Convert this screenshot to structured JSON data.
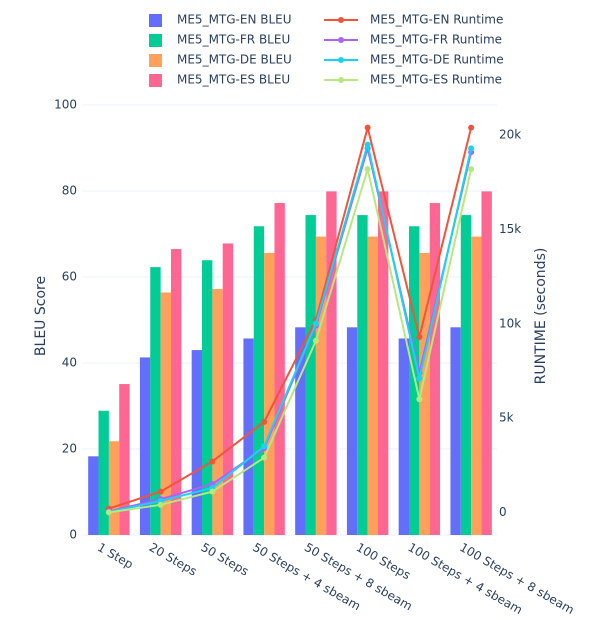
{
  "chart_data": {
    "type": "bar",
    "categories": [
      "1 Step",
      "20 Steps",
      "50 Steps",
      "50 Steps + 4 sbeam",
      "50 Steps + 8 sbeam",
      "100 Steps",
      "100 Steps + 4 sbeam",
      "100 Steps + 8 sbeam"
    ],
    "ylabel": "BLEU Score",
    "y2label": "RUNTIME (seconds)",
    "ylim": [
      0,
      100
    ],
    "y2lim": [
      -1200,
      21600
    ],
    "yticks": [
      0,
      20,
      40,
      60,
      80,
      100
    ],
    "y2ticks": [
      0,
      5000,
      10000,
      15000,
      20000
    ],
    "y2ticklabels": [
      "0",
      "5k",
      "10k",
      "15k",
      "20k"
    ],
    "legend_position": "top-center",
    "bar_series": [
      {
        "name": "ME5_MTG-EN BLEU",
        "color": "#636efa",
        "values": [
          18.3,
          41.3,
          43.0,
          45.7,
          48.3,
          48.3,
          45.7,
          48.3
        ]
      },
      {
        "name": "ME5_MTG-FR BLEU",
        "color": "#00cc96",
        "values": [
          28.9,
          62.3,
          63.9,
          71.8,
          74.4,
          74.4,
          71.8,
          74.4
        ]
      },
      {
        "name": "ME5_MTG-DE BLEU",
        "color": "#ffa15a",
        "values": [
          21.8,
          56.4,
          57.2,
          65.6,
          69.4,
          69.4,
          65.6,
          69.4
        ]
      },
      {
        "name": "ME5_MTG-ES BLEU",
        "color": "#ff6692",
        "values": [
          35.1,
          66.5,
          67.8,
          77.2,
          79.9,
          79.9,
          77.2,
          79.9
        ]
      }
    ],
    "line_series": [
      {
        "name": "ME5_MTG-EN Runtime",
        "color": "#ef553b",
        "values": [
          200,
          1100,
          2700,
          4800,
          10200,
          20400,
          9300,
          20400
        ]
      },
      {
        "name": "ME5_MTG-FR Runtime",
        "color": "#ab63fa",
        "values": [
          50,
          700,
          1500,
          3400,
          9900,
          19300,
          7400,
          19100
        ]
      },
      {
        "name": "ME5_MTG-DE Runtime",
        "color": "#19d3f3",
        "values": [
          20,
          600,
          1300,
          3500,
          10000,
          19500,
          7100,
          19300
        ]
      },
      {
        "name": "ME5_MTG-ES Runtime",
        "color": "#b6e880",
        "values": [
          0,
          400,
          1100,
          2900,
          9100,
          18200,
          6000,
          18200
        ]
      }
    ]
  }
}
